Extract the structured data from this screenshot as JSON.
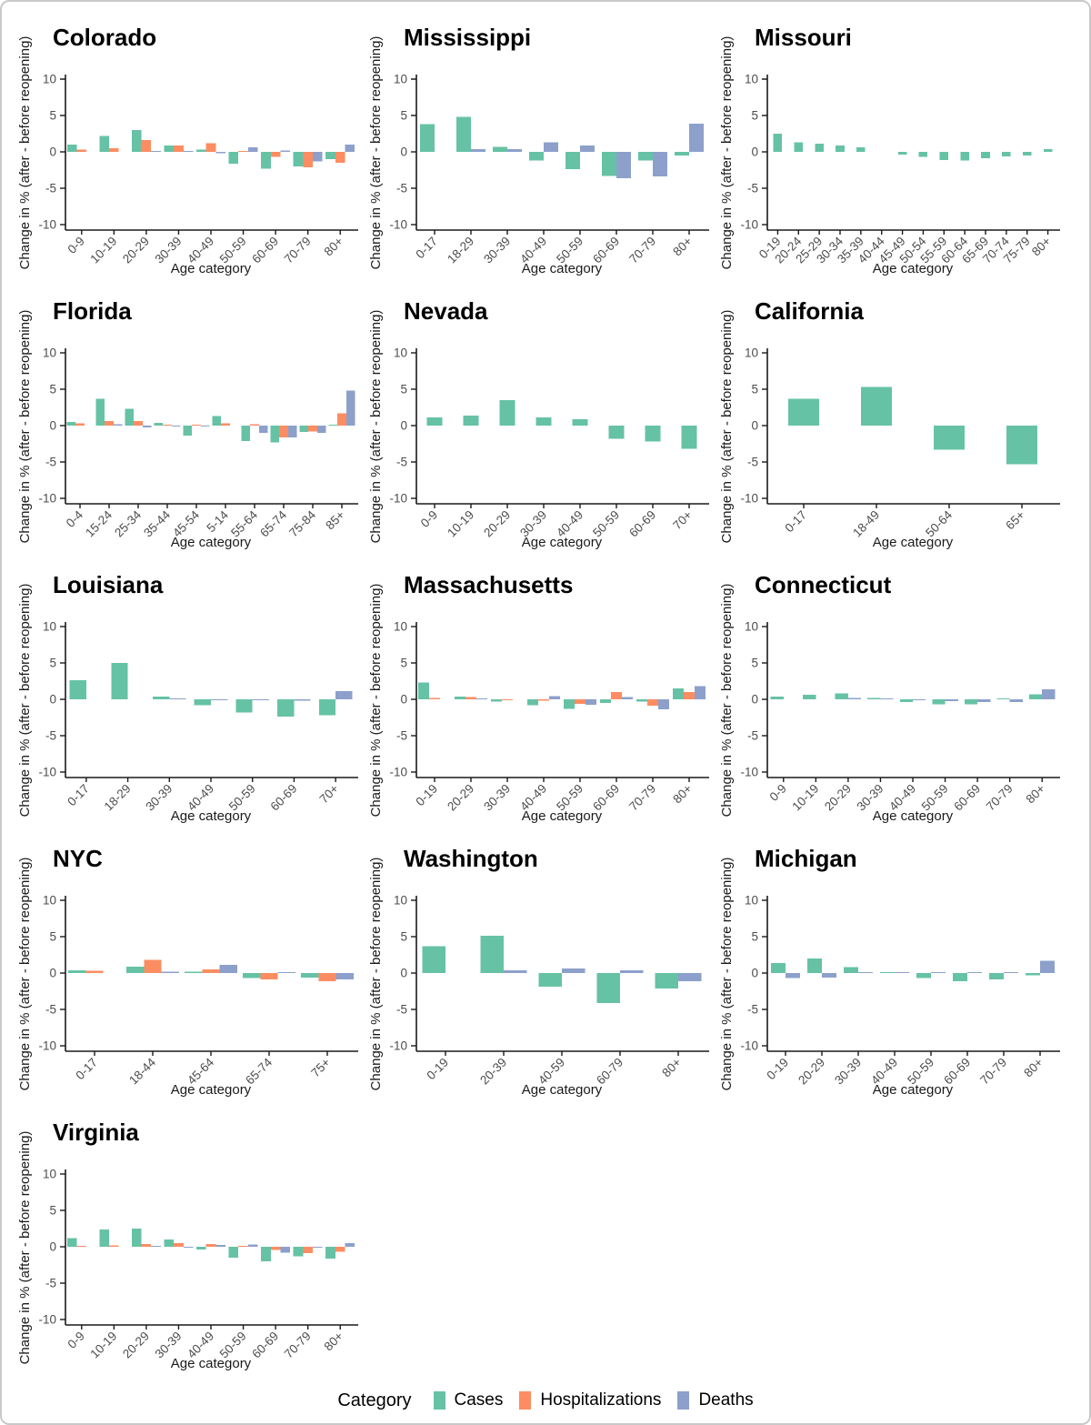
{
  "figure": {
    "y_axis_label": "Change in % (after - before reopening)",
    "x_axis_label": "Age category",
    "y_ticks": [
      10,
      5,
      0,
      -5,
      -10
    ],
    "ylim": [
      -10,
      10
    ],
    "grid": "off",
    "legend_position": "bottom"
  },
  "legend": {
    "title": "Category",
    "items": [
      {
        "label": "Cases",
        "color": "#66C2A5"
      },
      {
        "label": "Hospitalizations",
        "color": "#FC8D62"
      },
      {
        "label": "Deaths",
        "color": "#8DA0CB"
      }
    ]
  },
  "chart_data": [
    {
      "type": "bar",
      "title": "Colorado",
      "categories": [
        "0-9",
        "10-19",
        "20-29",
        "30-39",
        "40-49",
        "50-59",
        "60-69",
        "70-79",
        "80+"
      ],
      "ylim": [
        -10,
        10
      ],
      "series": [
        {
          "name": "Cases",
          "values": [
            1.0,
            2.2,
            3.0,
            0.9,
            0.3,
            -1.6,
            -2.3,
            -2.0,
            -1.0
          ]
        },
        {
          "name": "Hospitalizations",
          "values": [
            0.3,
            0.5,
            1.6,
            0.9,
            1.2,
            0.1,
            -0.7,
            -2.1,
            -1.5
          ]
        },
        {
          "name": "Deaths",
          "values": [
            0,
            0,
            0.1,
            0.05,
            -0.2,
            0.6,
            0.2,
            -1.3,
            1.0
          ]
        }
      ]
    },
    {
      "type": "bar",
      "title": "Mississippi",
      "categories": [
        "0-17",
        "18-29",
        "30-39",
        "40-49",
        "50-59",
        "60-69",
        "70-79",
        "80+"
      ],
      "ylim": [
        -10,
        10
      ],
      "series": [
        {
          "name": "Cases",
          "values": [
            3.8,
            4.8,
            0.7,
            -1.2,
            -2.4,
            -3.3,
            -1.2,
            -0.5
          ]
        },
        {
          "name": "Deaths",
          "values": [
            0,
            0.4,
            0.4,
            1.3,
            0.9,
            -3.6,
            -3.4,
            3.9
          ]
        }
      ]
    },
    {
      "type": "bar",
      "title": "Missouri",
      "categories": [
        "0-19",
        "20-24",
        "25-29",
        "30-34",
        "35-39",
        "40-44",
        "45-49",
        "50-54",
        "55-59",
        "60-64",
        "65-69",
        "70-74",
        "75-79",
        "80+"
      ],
      "ylim": [
        -10,
        10
      ],
      "series": [
        {
          "name": "Cases",
          "values": [
            2.5,
            1.3,
            1.1,
            0.9,
            0.6,
            0,
            -0.4,
            -0.7,
            -1.1,
            -1.2,
            -0.9,
            -0.6,
            -0.5,
            0.4
          ]
        }
      ]
    },
    {
      "type": "bar",
      "title": "Florida",
      "categories": [
        "0-4",
        "15-24",
        "25-34",
        "35-44",
        "45-54",
        "5-14",
        "55-64",
        "65-74",
        "75-84",
        "85+"
      ],
      "ylim": [
        -10,
        10
      ],
      "series": [
        {
          "name": "Cases",
          "values": [
            0.5,
            3.7,
            2.3,
            0.4,
            -1.4,
            1.3,
            -2.1,
            -2.3,
            -0.9,
            0.1
          ]
        },
        {
          "name": "Hospitalizations",
          "values": [
            0.3,
            0.6,
            0.6,
            0.05,
            0.1,
            0.3,
            0.2,
            -1.6,
            -0.8,
            1.7
          ]
        },
        {
          "name": "Deaths",
          "values": [
            0,
            0.2,
            -0.25,
            -0.15,
            -0.05,
            0,
            -1.0,
            -1.6,
            -1.0,
            4.8
          ]
        }
      ]
    },
    {
      "type": "bar",
      "title": "Nevada",
      "categories": [
        "0-9",
        "10-19",
        "20-29",
        "30-39",
        "40-49",
        "50-59",
        "60-69",
        "70+"
      ],
      "ylim": [
        -10,
        10
      ],
      "series": [
        {
          "name": "Cases",
          "values": [
            1.1,
            1.4,
            3.5,
            1.1,
            0.9,
            -1.8,
            -2.2,
            -3.2
          ]
        }
      ]
    },
    {
      "type": "bar",
      "title": "California",
      "categories": [
        "0-17",
        "18-49",
        "50-64",
        "65+"
      ],
      "ylim": [
        -10,
        10
      ],
      "series": [
        {
          "name": "Cases",
          "values": [
            3.7,
            5.3,
            -3.3,
            -5.3
          ]
        }
      ]
    },
    {
      "type": "bar",
      "title": "Louisiana",
      "categories": [
        "0-17",
        "18-29",
        "30-39",
        "40-49",
        "50-59",
        "60-69",
        "70+"
      ],
      "ylim": [
        -10,
        10
      ],
      "series": [
        {
          "name": "Cases",
          "values": [
            2.6,
            5.0,
            0.4,
            -0.8,
            -1.8,
            -2.4,
            -2.2
          ]
        },
        {
          "name": "Deaths",
          "values": [
            0,
            0,
            0.1,
            -0.1,
            -0.15,
            -0.2,
            1.1
          ]
        }
      ]
    },
    {
      "type": "bar",
      "title": "Massachusetts",
      "categories": [
        "0-19",
        "20-29",
        "30-39",
        "40-49",
        "50-59",
        "60-69",
        "70-79",
        "80+"
      ],
      "ylim": [
        -10,
        10
      ],
      "series": [
        {
          "name": "Cases",
          "values": [
            2.3,
            0.4,
            -0.3,
            -0.8,
            -1.3,
            -0.5,
            -0.3,
            1.5
          ]
        },
        {
          "name": "Hospitalizations",
          "values": [
            0.2,
            0.3,
            -0.1,
            -0.2,
            -0.65,
            1.0,
            -0.9,
            1.0
          ]
        },
        {
          "name": "Deaths",
          "values": [
            0,
            0.15,
            0,
            0.45,
            -0.75,
            0.3,
            -1.4,
            1.8
          ]
        }
      ]
    },
    {
      "type": "bar",
      "title": "Connecticut",
      "categories": [
        "0-9",
        "10-19",
        "20-29",
        "30-39",
        "40-49",
        "50-59",
        "60-69",
        "70-79",
        "80+"
      ],
      "ylim": [
        -10,
        10
      ],
      "series": [
        {
          "name": "Cases",
          "values": [
            0.4,
            0.6,
            0.8,
            0.2,
            -0.35,
            -0.7,
            -0.7,
            0.1,
            0.7
          ]
        },
        {
          "name": "Deaths",
          "values": [
            0,
            0,
            0.2,
            0.05,
            -0.05,
            -0.25,
            -0.4,
            -0.35,
            1.4
          ]
        }
      ]
    },
    {
      "type": "bar",
      "title": "NYC",
      "categories": [
        "0-17",
        "18-44",
        "45-64",
        "65-74",
        "75+"
      ],
      "ylim": [
        -10,
        10
      ],
      "series": [
        {
          "name": "Cases",
          "values": [
            0.4,
            0.9,
            0.2,
            -0.7,
            -0.6
          ]
        },
        {
          "name": "Hospitalizations",
          "values": [
            0.3,
            1.8,
            0.5,
            -0.85,
            -1.1
          ]
        },
        {
          "name": "Deaths",
          "values": [
            0,
            0.2,
            1.1,
            0.1,
            -0.9
          ]
        }
      ]
    },
    {
      "type": "bar",
      "title": "Washington",
      "categories": [
        "0-19",
        "20-39",
        "40-59",
        "60-79",
        "80+"
      ],
      "ylim": [
        -10,
        10
      ],
      "series": [
        {
          "name": "Cases",
          "values": [
            3.7,
            5.1,
            -1.9,
            -4.1,
            -2.1
          ]
        },
        {
          "name": "Deaths",
          "values": [
            0,
            0.4,
            0.6,
            0.4,
            -1.1
          ]
        }
      ]
    },
    {
      "type": "bar",
      "title": "Michigan",
      "categories": [
        "0-19",
        "20-29",
        "30-39",
        "40-49",
        "50-59",
        "60-69",
        "70-79",
        "80+"
      ],
      "ylim": [
        -10,
        10
      ],
      "series": [
        {
          "name": "Cases",
          "values": [
            1.4,
            2.0,
            0.8,
            0.1,
            -0.7,
            -1.1,
            -0.9,
            -0.3
          ]
        },
        {
          "name": "Deaths",
          "values": [
            -0.7,
            -0.6,
            0.1,
            0.05,
            0.05,
            0.05,
            0.05,
            1.7
          ]
        }
      ]
    },
    {
      "type": "bar",
      "title": "Virginia",
      "categories": [
        "0-9",
        "10-19",
        "20-29",
        "30-39",
        "40-49",
        "50-59",
        "60-69",
        "70-79",
        "80+"
      ],
      "ylim": [
        -10,
        10
      ],
      "series": [
        {
          "name": "Cases",
          "values": [
            1.2,
            2.4,
            2.5,
            1.0,
            -0.4,
            -1.5,
            -2.0,
            -1.3,
            -1.6
          ]
        },
        {
          "name": "Hospitalizations",
          "values": [
            0.15,
            0.2,
            0.4,
            0.5,
            0.4,
            0.1,
            -0.45,
            -0.9,
            -0.7
          ]
        },
        {
          "name": "Deaths",
          "values": [
            0,
            0,
            0.05,
            -0.1,
            0.25,
            0.3,
            -0.8,
            -0.1,
            0.5
          ]
        }
      ]
    }
  ]
}
